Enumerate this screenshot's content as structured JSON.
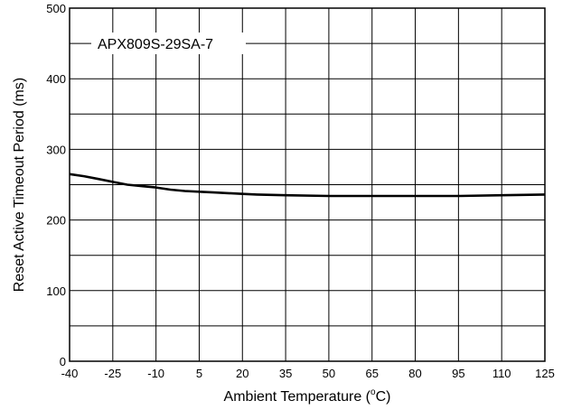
{
  "chart_data": {
    "type": "line",
    "title": "",
    "xlabel": "Ambient Temperature (",
    "xlabel_degree": "o",
    "xlabel_unit": "C)",
    "ylabel": "Reset Active Timeout Period (ms)",
    "xlim": [
      -40,
      125
    ],
    "ylim": [
      0,
      500
    ],
    "x_ticks": [
      -40,
      -25,
      -10,
      5,
      20,
      35,
      50,
      65,
      80,
      95,
      110,
      125
    ],
    "y_ticks": [
      0,
      100,
      200,
      300,
      400,
      500
    ],
    "y_minor_grid_step": 50,
    "grid": true,
    "legend_position": "top-left",
    "series": [
      {
        "name": "APX809S-29SA-7",
        "color": "#000000",
        "x": [
          -40,
          -35,
          -30,
          -25,
          -20,
          -15,
          -10,
          -5,
          0,
          5,
          10,
          20,
          25,
          35,
          50,
          65,
          80,
          95,
          110,
          125
        ],
        "y": [
          265,
          262,
          258,
          254,
          250,
          248,
          246,
          243,
          241,
          240,
          239,
          237,
          236,
          235,
          234,
          234,
          234,
          234,
          235,
          236
        ]
      }
    ]
  }
}
